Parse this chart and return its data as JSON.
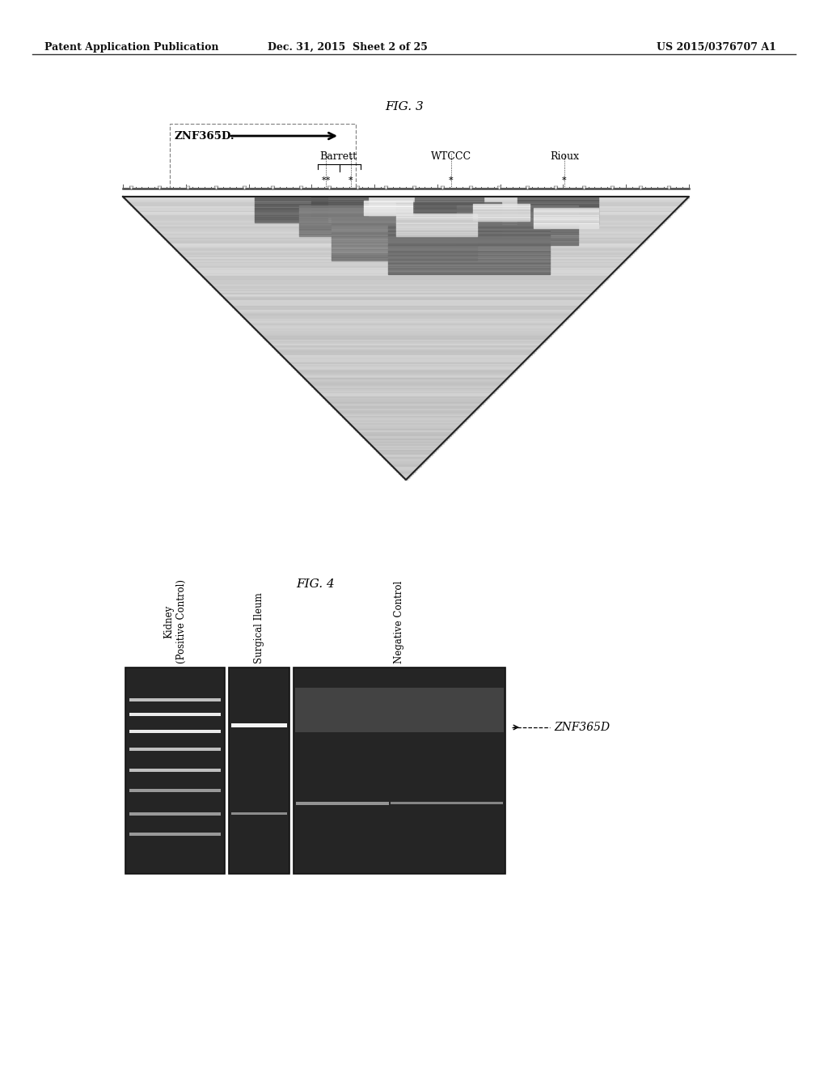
{
  "page_header_left": "Patent Application Publication",
  "page_header_center": "Dec. 31, 2015  Sheet 2 of 25",
  "page_header_right": "US 2015/0376707 A1",
  "fig3_title": "FIG. 3",
  "fig4_title": "FIG. 4",
  "znf365d_label": "ZNF365D.",
  "barrett_label": "Barrett",
  "wtccc_label": "WTCCC",
  "rioux_label": "Rioux",
  "znf365d_gel_label": "ZNF365D",
  "lane_labels": [
    "Kidney\n(Positive Control)",
    "Surgical Ileum",
    "Negative Control"
  ],
  "background_color": "#ffffff",
  "text_color": "#000000",
  "header_font_size": 9,
  "label_font_size": 8
}
